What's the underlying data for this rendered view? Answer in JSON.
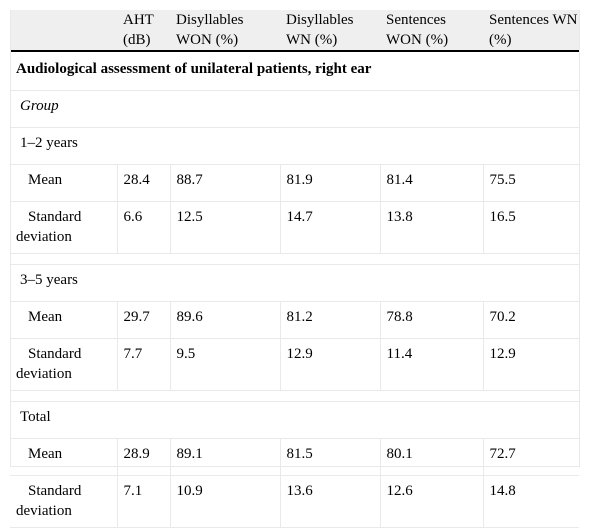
{
  "columns": [
    "",
    "AHT (dB)",
    "Disyllables WON (%)",
    "Disyllables WN (%)",
    "Sentences WON (%)",
    "Sentences WN (%)"
  ],
  "title": "Audiological assessment of unilateral patients, right ear",
  "group_label": "Group",
  "sections": [
    {
      "name": "1–2 years",
      "rows": [
        {
          "label": "Mean",
          "values": [
            "28.4",
            "88.7",
            "81.9",
            "81.4",
            "75.5"
          ]
        },
        {
          "label": "Standard deviation",
          "values": [
            "6.6",
            "12.5",
            "14.7",
            "13.8",
            "16.5"
          ]
        }
      ]
    },
    {
      "name": "3–5 years",
      "rows": [
        {
          "label": "Mean",
          "values": [
            "29.7",
            "89.6",
            "81.2",
            "78.8",
            "70.2"
          ]
        },
        {
          "label": "Standard deviation",
          "values": [
            "7.7",
            "9.5",
            "12.9",
            "11.4",
            "12.9"
          ]
        }
      ]
    },
    {
      "name": "Total",
      "rows": [
        {
          "label": "Mean",
          "values": [
            "28.9",
            "89.1",
            "81.5",
            "80.1",
            "72.7"
          ]
        },
        {
          "label": "Standard deviation",
          "values": [
            "7.1",
            "10.9",
            "13.6",
            "12.6",
            "14.8"
          ]
        }
      ]
    }
  ]
}
